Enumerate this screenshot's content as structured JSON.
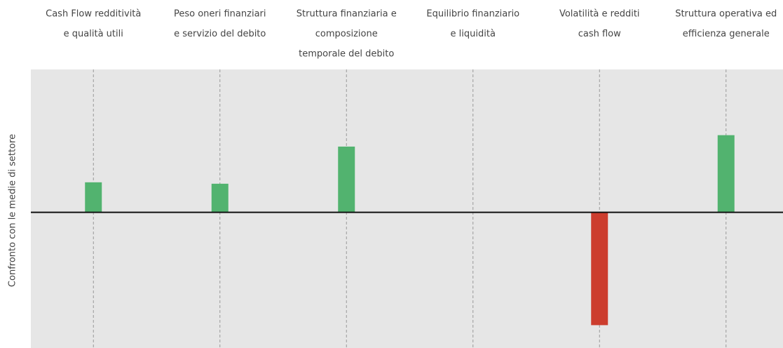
{
  "chart_data": {
    "type": "bar",
    "y_label": "Confronto con le medie di settore",
    "categories": [
      [
        "Cash Flow redditività",
        "e qualità utili"
      ],
      [
        "Peso oneri finanziari",
        "e servizio del debito"
      ],
      [
        "Struttura finanziaria e",
        "composizione",
        "temporale del debito"
      ],
      [
        "Equilibrio finanziario",
        "e liquidità"
      ],
      [
        "Volatilità e redditi",
        "cash flow"
      ],
      [
        "Struttura operativa ed",
        "efficienza generale"
      ]
    ],
    "values": [
      0.21,
      0.2,
      0.46,
      0,
      -0.79,
      0.54
    ],
    "colors": [
      "#52b36f",
      "#52b36f",
      "#52b36f",
      "#52b36f",
      "#cc3d2e",
      "#52b36f"
    ],
    "ylim": [
      -0.95,
      1.0
    ]
  }
}
